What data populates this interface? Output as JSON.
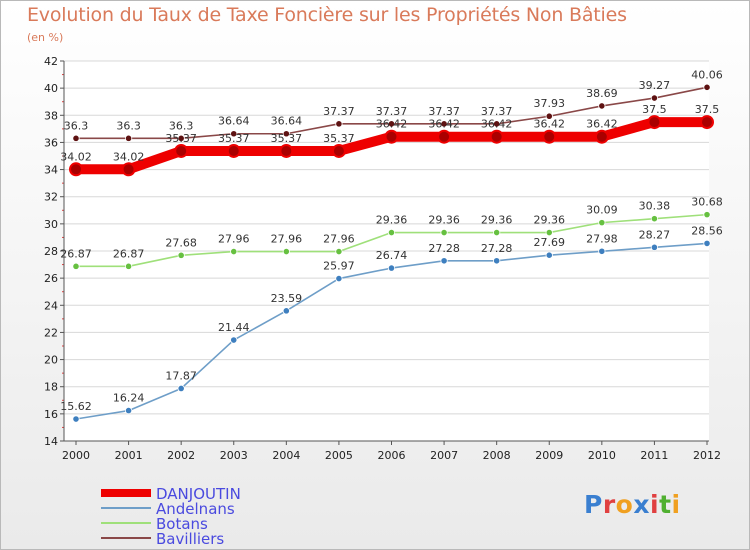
{
  "title": "Evolution du Taux de Taxe Foncière sur les Propriétés Non Bâties",
  "unit_label": "(en %)",
  "logo": {
    "text": "Proxiti",
    "letter_colors": [
      "#3a7fd0",
      "#e04040",
      "#f0a020",
      "#3a7fd0",
      "#e04040",
      "#50b030",
      "#f0a020"
    ]
  },
  "chart_data": {
    "type": "line",
    "title": "Evolution du Taux de Taxe Foncière sur les Propriétés Non Bâties",
    "ylabel": "(en %)",
    "xlabel": "",
    "x": [
      "2000",
      "2001",
      "2002",
      "2003",
      "2004",
      "2005",
      "2006",
      "2007",
      "2008",
      "2009",
      "2010",
      "2011",
      "2012"
    ],
    "ylim": [
      14,
      42
    ],
    "yticks": [
      14,
      16,
      18,
      20,
      22,
      24,
      26,
      28,
      30,
      32,
      34,
      36,
      38,
      40,
      42
    ],
    "grid": true,
    "legend": "bottom-left",
    "series": [
      {
        "name": "DANJOUTIN",
        "color": "#ee0000",
        "markerColor": "#aa0000",
        "thick": true,
        "values": [
          34.02,
          34.02,
          35.37,
          35.37,
          35.37,
          35.37,
          36.42,
          36.42,
          36.42,
          36.42,
          36.42,
          37.5,
          37.5
        ],
        "labels": [
          "34.02",
          "34.02",
          "35.37",
          "35.37",
          "35.37",
          "35.37",
          "36.42",
          "36.42",
          "36.42",
          "36.42",
          "36.42",
          "37.5",
          "37.5"
        ]
      },
      {
        "name": "Andelnans",
        "color": "#6e9ec8",
        "markerColor": "#3e7fbf",
        "thick": false,
        "values": [
          15.62,
          16.24,
          17.87,
          21.44,
          23.59,
          25.97,
          26.74,
          27.28,
          27.28,
          27.69,
          27.98,
          28.27,
          28.56
        ],
        "labels": [
          "15.62",
          "16.24",
          "17.87",
          "21.44",
          "23.59",
          "25.97",
          "26.74",
          "27.28",
          "27.28",
          "27.69",
          "27.98",
          "28.27",
          "28.56"
        ]
      },
      {
        "name": "Botans",
        "color": "#9fe07a",
        "markerColor": "#66c040",
        "thick": false,
        "values": [
          26.87,
          26.87,
          27.68,
          27.96,
          27.96,
          27.96,
          29.36,
          29.36,
          29.36,
          29.36,
          30.09,
          30.38,
          30.68
        ],
        "labels": [
          "26.87",
          "26.87",
          "27.68",
          "27.96",
          "27.96",
          "27.96",
          "29.36",
          "29.36",
          "29.36",
          "29.36",
          "30.09",
          "30.38",
          "30.68"
        ]
      },
      {
        "name": "Bavilliers",
        "color": "#8a4848",
        "markerColor": "#5e1212",
        "thick": false,
        "values": [
          36.3,
          36.3,
          36.3,
          36.64,
          36.64,
          37.37,
          37.37,
          37.37,
          37.37,
          37.93,
          38.69,
          39.27,
          40.06
        ],
        "labels": [
          "36.3",
          "36.3",
          "36.3",
          "36.64",
          "36.64",
          "37.37",
          "37.37",
          "37.37",
          "37.37",
          "37.93",
          "38.69",
          "39.27",
          "40.06"
        ]
      }
    ]
  }
}
